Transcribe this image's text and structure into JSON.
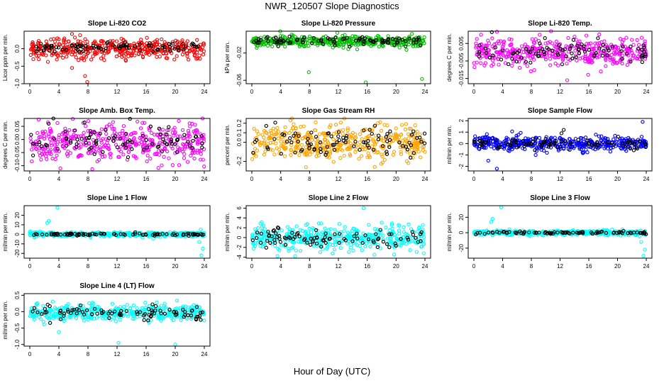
{
  "title": "NWR_120507  Slope Diagnostics",
  "xlabel": "Hour of Day (UTC)",
  "chart_data": [
    {
      "type": "scatter",
      "title": "Slope Li-820 CO2",
      "ylabel": "Licor ppm per min.",
      "xlim": [
        0,
        24
      ],
      "ylim": [
        -1.0,
        0.5
      ],
      "xticks": [
        0,
        4,
        8,
        12,
        16,
        20,
        24
      ],
      "yticks": [
        "-1.0",
        "-0.5",
        "0.0"
      ],
      "ytick_values": [
        -1.0,
        -0.5,
        0.0
      ],
      "series": [
        {
          "color": "#ff0000",
          "center": 0.0,
          "spread": 0.15,
          "outliers": [
            [
              5.8,
              -0.55
            ],
            [
              7.6,
              -0.78
            ],
            [
              7.9,
              -0.95
            ],
            [
              6.2,
              0.32
            ],
            [
              3.3,
              0.28
            ],
            [
              5.8,
              0.42
            ]
          ]
        },
        {
          "color": "#000000",
          "center": 0.05,
          "spread": 0.06,
          "outliers": []
        }
      ]
    },
    {
      "type": "scatter",
      "title": "Slope Li-820 Pressure",
      "ylabel": "kPa per min.",
      "xlim": [
        0,
        24
      ],
      "ylim": [
        -0.065,
        0.012
      ],
      "xticks": [
        0,
        4,
        8,
        12,
        16,
        20,
        24
      ],
      "yticks": [
        "-0.06",
        "-0.02"
      ],
      "ytick_values": [
        -0.06,
        -0.02
      ],
      "series": [
        {
          "color": "#00c000",
          "center": -0.003,
          "spread": 0.004,
          "outliers": [
            [
              7.9,
              -0.048
            ],
            [
              15.8,
              -0.063
            ],
            [
              23.6,
              -0.058
            ],
            [
              22.2,
              0.008
            ]
          ]
        },
        {
          "color": "#000000",
          "center": -0.003,
          "spread": 0.003,
          "outliers": []
        }
      ]
    },
    {
      "type": "scatter",
      "title": "Slope Li-820 Temp.",
      "ylabel": "degrees C per min.",
      "xlim": [
        0,
        24
      ],
      "ylim": [
        -0.018,
        0.012
      ],
      "xticks": [
        0,
        4,
        8,
        12,
        16,
        20,
        24
      ],
      "yticks": [
        "-0.015",
        "-0.005",
        "0.005"
      ],
      "ytick_values": [
        -0.015,
        -0.005,
        0.005
      ],
      "series": [
        {
          "color": "#ff00ff",
          "center": 0.0,
          "spread": 0.004,
          "outliers": [
            [
              1.0,
              0.01
            ],
            [
              13.0,
              -0.016
            ],
            [
              23.8,
              0.005
            ]
          ]
        },
        {
          "color": "#000000",
          "center": 0.0,
          "spread": 0.003,
          "outliers": []
        }
      ]
    },
    {
      "type": "scatter",
      "title": "Slope Amb. Box Temp.",
      "ylabel": "degrees C per min.",
      "xlim": [
        0,
        24
      ],
      "ylim": [
        -0.12,
        0.08
      ],
      "xticks": [
        0,
        4,
        8,
        12,
        16,
        20,
        24
      ],
      "yticks": [
        "-0.10",
        "-0.05",
        "0.00",
        "0.05"
      ],
      "ytick_values": [
        -0.1,
        -0.05,
        0.0,
        0.05
      ],
      "series": [
        {
          "color": "#ff00ff",
          "center": -0.01,
          "spread": 0.035,
          "outliers": [
            [
              2.5,
              0.065
            ],
            [
              4.2,
              -0.11
            ]
          ]
        },
        {
          "color": "#000000",
          "center": 0.0,
          "spread": 0.03,
          "outliers": [
            [
              2.6,
              0.06
            ]
          ]
        }
      ]
    },
    {
      "type": "scatter",
      "title": "Slope Gas Stream RH",
      "ylabel": "percent per min.",
      "xlim": [
        0,
        24
      ],
      "ylim": [
        -0.3,
        0.25
      ],
      "xticks": [
        0,
        4,
        8,
        12,
        16,
        20,
        24
      ],
      "yticks": [
        "-0.2",
        "0.0",
        "0.1",
        "0.2"
      ],
      "ytick_values": [
        -0.2,
        0.0,
        0.1,
        0.2
      ],
      "series": [
        {
          "color": "#ffa500",
          "center": 0.0,
          "spread": 0.09,
          "outliers": [
            [
              7.5,
              -0.26
            ],
            [
              17.5,
              0.2
            ]
          ]
        },
        {
          "color": "#000000",
          "center": 0.0,
          "spread": 0.07,
          "outliers": []
        }
      ]
    },
    {
      "type": "scatter",
      "title": "Slope Sample Flow",
      "ylabel": "ml/min per min.",
      "xlim": [
        0,
        24
      ],
      "ylim": [
        -2.4,
        2.2
      ],
      "xticks": [
        0,
        4,
        8,
        12,
        16,
        20,
        24
      ],
      "yticks": [
        "-2",
        "-1",
        "0",
        "1",
        "2"
      ],
      "ytick_values": [
        -2,
        -1,
        0,
        1,
        2
      ],
      "series": [
        {
          "color": "#0000ff",
          "center": 0.0,
          "spread": 0.3,
          "outliers": [
            [
              3.2,
              -2.2
            ],
            [
              23.5,
              1.9
            ],
            [
              2.0,
              -1.5
            ],
            [
              8.6,
              -1.0
            ],
            [
              19.0,
              -0.7
            ]
          ]
        },
        {
          "color": "#000000",
          "center": 0.0,
          "spread": 0.25,
          "outliers": [
            [
              12.5,
              1.2
            ],
            [
              12.2,
              0.9
            ]
          ]
        }
      ]
    },
    {
      "type": "scatter",
      "title": "Slope Line 1 Flow",
      "ylabel": "ml/min per min.",
      "xlim": [
        0,
        24
      ],
      "ylim": [
        -25,
        30
      ],
      "xticks": [
        0,
        4,
        8,
        12,
        16,
        20,
        24
      ],
      "yticks": [
        "-20",
        "-10",
        "0",
        "10",
        "20"
      ],
      "ytick_values": [
        -20,
        -10,
        0,
        10,
        20
      ],
      "series": [
        {
          "color": "#00ffff",
          "center": 0.0,
          "spread": 1.2,
          "outliers": [
            [
              3.8,
              28
            ],
            [
              2.4,
              12
            ],
            [
              2.6,
              14
            ],
            [
              23.6,
              -22
            ],
            [
              23.8,
              -15
            ],
            [
              23.3,
              -8
            ],
            [
              23.5,
              5
            ]
          ]
        },
        {
          "color": "#000000",
          "center": 0.0,
          "spread": 0.6,
          "outliers": []
        }
      ]
    },
    {
      "type": "scatter",
      "title": "Slope Line 2 Flow",
      "ylabel": "ml/min per min.",
      "xlim": [
        0,
        24
      ],
      "ylim": [
        -4.2,
        6.5
      ],
      "xticks": [
        0,
        4,
        8,
        12,
        16,
        20,
        24
      ],
      "yticks": [
        "-4",
        "-2",
        "0",
        "2",
        "4",
        "6"
      ],
      "ytick_values": [
        -4,
        -2,
        0,
        2,
        4,
        6
      ],
      "series": [
        {
          "color": "#00ffff",
          "center": 0.0,
          "spread": 1.3,
          "outliers": [
            [
              15.5,
              6.0
            ],
            [
              6.0,
              -3.8
            ],
            [
              17.0,
              -3.5
            ]
          ]
        },
        {
          "color": "#000000",
          "center": 0.0,
          "spread": 1.0,
          "outliers": []
        }
      ]
    },
    {
      "type": "scatter",
      "title": "Slope Line 3 Flow",
      "ylabel": "ml/min per min.",
      "xlim": [
        0,
        24
      ],
      "ylim": [
        -33,
        35
      ],
      "xticks": [
        0,
        4,
        8,
        12,
        16,
        20,
        24
      ],
      "yticks": [
        "-20",
        "0",
        "20"
      ],
      "ytick_values": [
        -20,
        0,
        20
      ],
      "series": [
        {
          "color": "#00ffff",
          "center": 0.0,
          "spread": 1.5,
          "outliers": [
            [
              3.8,
              33
            ],
            [
              2.4,
              14
            ],
            [
              2.6,
              18
            ],
            [
              23.6,
              -30
            ],
            [
              23.8,
              -22
            ],
            [
              23.3,
              -12
            ]
          ]
        },
        {
          "color": "#000000",
          "center": 0.0,
          "spread": 0.8,
          "outliers": []
        }
      ]
    },
    {
      "type": "scatter",
      "title": "Slope Line 4 (LT) Flow",
      "ylabel": "ml/min per min.",
      "xlim": [
        0,
        24
      ],
      "ylim": [
        -1.05,
        0.55
      ],
      "xticks": [
        0,
        4,
        8,
        12,
        16,
        20,
        24
      ],
      "yticks": [
        "-1.0",
        "-0.5",
        "0.0",
        "0.5"
      ],
      "ytick_values": [
        -1.0,
        -0.5,
        0.0,
        0.5
      ],
      "series": [
        {
          "color": "#00ffff",
          "center": -0.03,
          "spread": 0.12,
          "outliers": [
            [
              12.2,
              -0.95
            ],
            [
              20.0,
              -1.0
            ],
            [
              4.0,
              -0.62
            ]
          ]
        },
        {
          "color": "#000000",
          "center": -0.03,
          "spread": 0.1,
          "outliers": []
        }
      ]
    }
  ]
}
